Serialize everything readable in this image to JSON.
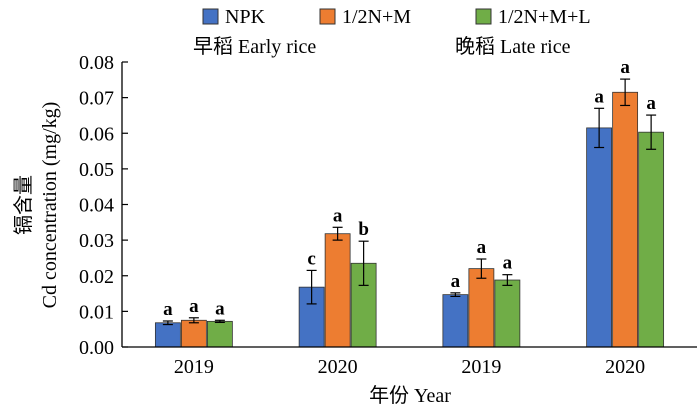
{
  "chart_data": {
    "type": "bar",
    "ylabel_cn": "镉含量",
    "ylabel": "Cd concentration (mg/kg)",
    "xlabel": "年份 Year",
    "ylim": [
      0,
      0.08
    ],
    "yticks": [
      "0.00",
      "0.01",
      "0.02",
      "0.03",
      "0.04",
      "0.05",
      "0.06",
      "0.07",
      "0.08"
    ],
    "legend_position": "top-center",
    "panels": [
      "早稻 Early rice",
      "晚稻 Late rice"
    ],
    "categories": [
      "2019",
      "2020",
      "2019",
      "2020"
    ],
    "series": [
      {
        "name": "NPK",
        "color": "#4472C4",
        "values": [
          0.0068,
          0.0168,
          0.0147,
          0.0615
        ],
        "errors": [
          0.0005,
          0.0047,
          0.0005,
          0.0055
        ],
        "labels": [
          "a",
          "c",
          "a",
          "a"
        ]
      },
      {
        "name": "1/2N+M",
        "color": "#ED7D31",
        "values": [
          0.0075,
          0.0318,
          0.022,
          0.0715
        ],
        "errors": [
          0.0007,
          0.0018,
          0.0027,
          0.0037
        ],
        "labels": [
          "a",
          "a",
          "a",
          "a"
        ]
      },
      {
        "name": "1/2N+M+L",
        "color": "#70AD47",
        "values": [
          0.0072,
          0.0235,
          0.0188,
          0.0603
        ],
        "errors": [
          0.0003,
          0.0062,
          0.0015,
          0.0048
        ],
        "labels": [
          "a",
          "b",
          "a",
          "a"
        ]
      }
    ]
  }
}
